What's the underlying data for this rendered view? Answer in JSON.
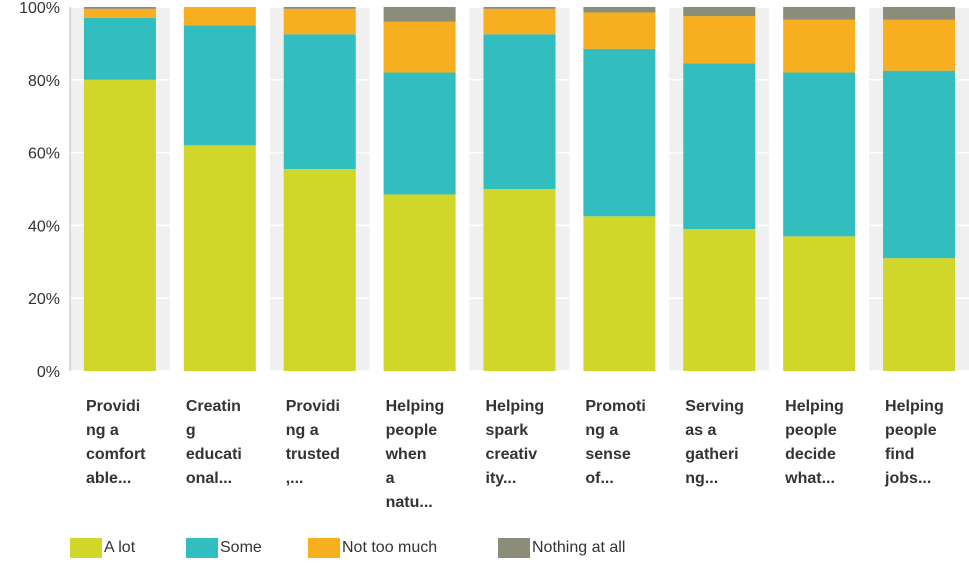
{
  "chart_data": {
    "type": "bar",
    "stacked": true,
    "categories": [
      [
        "Providi",
        "ng a",
        "comfort",
        "able..."
      ],
      [
        "Creatin",
        "g",
        "educati",
        "onal..."
      ],
      [
        "Providi",
        "ng a",
        "trusted",
        ",..."
      ],
      [
        "Helping",
        "people",
        "when",
        "a",
        "natu..."
      ],
      [
        "Helping",
        "spark",
        "creativ",
        "ity..."
      ],
      [
        "Promoti",
        "ng a",
        "sense",
        "of..."
      ],
      [
        "Serving",
        "as a",
        "gatheri",
        "ng..."
      ],
      [
        "Helping",
        "people",
        "decide",
        "what..."
      ],
      [
        "Helping",
        "people",
        "find",
        "jobs..."
      ]
    ],
    "series": [
      {
        "name": "A lot",
        "color": "#d0d62a",
        "values": [
          80,
          62,
          55.5,
          48.5,
          50,
          42.5,
          39,
          37,
          31
        ]
      },
      {
        "name": "Some",
        "color": "#32bdbf",
        "values": [
          17,
          33,
          37,
          33.5,
          42.5,
          46,
          45.5,
          45,
          51.5
        ]
      },
      {
        "name": "Not too much",
        "color": "#f7ae1f",
        "values": [
          2.5,
          5,
          7,
          14,
          7,
          10,
          13,
          14.5,
          14
        ]
      },
      {
        "name": "Nothing at all",
        "color": "#8c8c7a",
        "values": [
          0.5,
          0,
          0.5,
          4,
          0.5,
          1.5,
          2.5,
          3.5,
          3.5
        ]
      }
    ],
    "yticks": [
      "0%",
      "20%",
      "40%",
      "60%",
      "80%",
      "100%"
    ],
    "ylim": [
      0,
      100
    ],
    "grid": true,
    "legend_position": "bottom-left",
    "title": "",
    "xlabel": "",
    "ylabel": ""
  }
}
